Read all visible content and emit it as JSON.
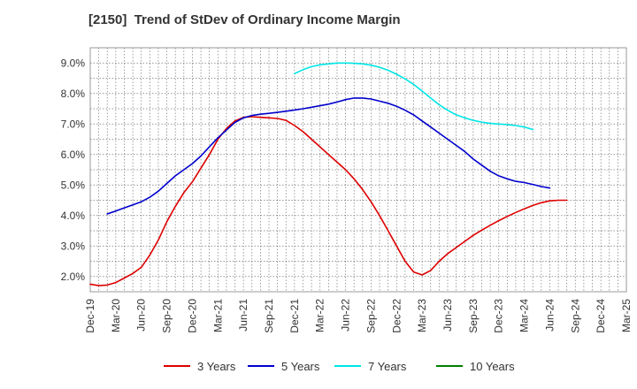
{
  "chart_data": {
    "type": "line",
    "title": "[2150]  Trend of StDev of Ordinary Income Margin",
    "x_tick_labels": [
      "Dec-19",
      "Mar-20",
      "Jun-20",
      "Sep-20",
      "Dec-20",
      "Mar-21",
      "Jun-21",
      "Sep-21",
      "Dec-21",
      "Mar-22",
      "Jun-22",
      "Sep-22",
      "Dec-22",
      "Mar-23",
      "Jun-23",
      "Sep-23",
      "Dec-23",
      "Mar-24",
      "Jun-24",
      "Sep-24",
      "Dec-24",
      "Mar-25"
    ],
    "y_tick_labels": [
      "2.0%",
      "3.0%",
      "4.0%",
      "5.0%",
      "6.0%",
      "7.0%",
      "8.0%",
      "9.0%"
    ],
    "ylim": [
      1.5,
      9.5
    ],
    "y_ticks": [
      2,
      3,
      4,
      5,
      6,
      7,
      8,
      9
    ],
    "grid": true,
    "legend_position": "bottom",
    "series": [
      {
        "name": "3 Years",
        "color": "#dd0000",
        "values": [
          1.75,
          1.7,
          1.72,
          1.8,
          1.95,
          2.1,
          2.3,
          2.7,
          3.2,
          3.8,
          4.3,
          4.75,
          5.1,
          5.55,
          6.0,
          6.5,
          6.85,
          7.1,
          7.22,
          7.24,
          7.22,
          7.2,
          7.18,
          7.12,
          6.95,
          6.75,
          6.5,
          6.25,
          6.0,
          5.75,
          5.5,
          5.2,
          4.85,
          4.45,
          4.0,
          3.5,
          3.0,
          2.5,
          2.15,
          2.05,
          2.2,
          2.5,
          2.75,
          2.95,
          3.15,
          3.35,
          3.52,
          3.68,
          3.83,
          3.97,
          4.1,
          4.22,
          4.33,
          4.42,
          4.48,
          4.5,
          4.5
        ]
      },
      {
        "name": "5 Years",
        "color": "#0000cc",
        "values": [
          null,
          null,
          4.05,
          4.15,
          4.25,
          4.35,
          4.45,
          4.6,
          4.8,
          5.05,
          5.3,
          5.5,
          5.7,
          5.95,
          6.25,
          6.55,
          6.8,
          7.05,
          7.2,
          7.28,
          7.32,
          7.35,
          7.38,
          7.42,
          7.46,
          7.5,
          7.55,
          7.6,
          7.65,
          7.72,
          7.8,
          7.85,
          7.85,
          7.82,
          7.75,
          7.68,
          7.58,
          7.45,
          7.3,
          7.1,
          6.9,
          6.7,
          6.5,
          6.3,
          6.1,
          5.85,
          5.65,
          5.45,
          5.3,
          5.2,
          5.12,
          5.08,
          5.02,
          4.95,
          4.9
        ]
      },
      {
        "name": "7 Years",
        "color": "#00e5e5",
        "values": [
          null,
          null,
          null,
          null,
          null,
          null,
          null,
          null,
          null,
          null,
          null,
          null,
          null,
          null,
          null,
          null,
          null,
          null,
          null,
          null,
          null,
          null,
          null,
          null,
          8.65,
          8.78,
          8.88,
          8.94,
          8.97,
          9.0,
          9.0,
          8.99,
          8.97,
          8.93,
          8.86,
          8.76,
          8.63,
          8.48,
          8.3,
          8.08,
          7.85,
          7.63,
          7.45,
          7.3,
          7.2,
          7.12,
          7.06,
          7.02,
          7.0,
          6.98,
          6.95,
          6.9,
          6.82
        ]
      },
      {
        "name": "10 Years",
        "color": "#008000",
        "values": []
      }
    ]
  }
}
